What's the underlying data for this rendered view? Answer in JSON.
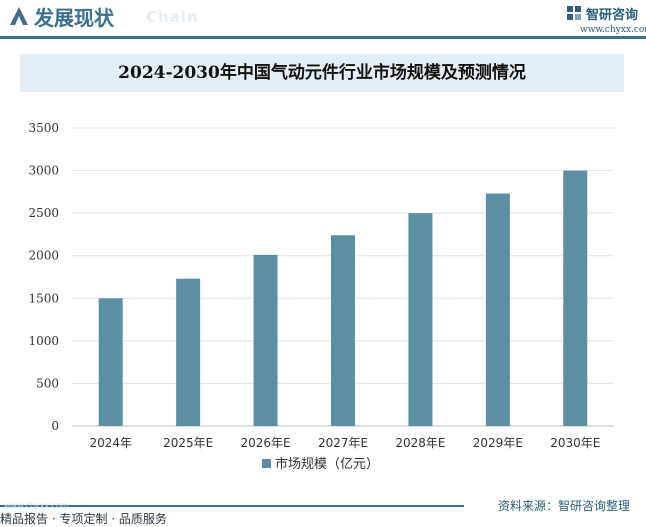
{
  "header": {
    "title": "发展现状",
    "title_en": "Chain",
    "brand_name": "智研咨询",
    "brand_url": "www.chyxx.com",
    "brand_color": "#2b5f7d"
  },
  "chart_data": {
    "type": "bar",
    "title": "2024-2030年中国气动元件行业市场规模及预测情况",
    "categories": [
      "2024年",
      "2025年E",
      "2026年E",
      "2027年E",
      "2028年E",
      "2029年E",
      "2030年E"
    ],
    "series": [
      {
        "name": "市场规模（亿元）",
        "values": [
          1500,
          1730,
          2010,
          2240,
          2500,
          2730,
          3000
        ],
        "color": "#5b8fa3"
      }
    ],
    "ylim": [
      0,
      3500
    ],
    "yticks": [
      0,
      500,
      1000,
      1500,
      2000,
      2500,
      3000,
      3500
    ],
    "grid": true,
    "legend_position": "bottom-center"
  },
  "footer": {
    "source": "资料来源：智研咨询整理",
    "tagline": "精品报告 · 专项定制 · 品质服务",
    "watermark_url": "www.chyxx.com"
  }
}
